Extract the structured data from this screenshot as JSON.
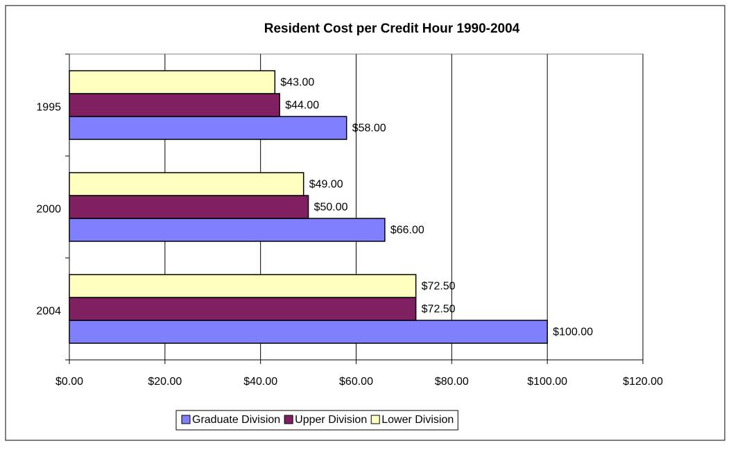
{
  "chart_data": {
    "type": "bar",
    "orientation": "horizontal",
    "title": "Resident Cost per Credit Hour 1990-2004",
    "categories": [
      "1995",
      "2000",
      "2004"
    ],
    "series": [
      {
        "name": "Graduate Division",
        "color": "#8080ff",
        "values": [
          58,
          66,
          100
        ],
        "value_labels": [
          "$58.00",
          "$66.00",
          "$100.00"
        ]
      },
      {
        "name": "Upper Division",
        "color": "#802060",
        "values": [
          44,
          50,
          72.5
        ],
        "value_labels": [
          "$44.00",
          "$50.00",
          "$72.50"
        ]
      },
      {
        "name": "Lower Division",
        "color": "#ffffc0",
        "values": [
          43,
          49,
          72.5
        ],
        "value_labels": [
          "$43.00",
          "$49.00",
          "$72.50"
        ]
      }
    ],
    "xlim": [
      0,
      120
    ],
    "xticks": [
      {
        "value": 0,
        "label": "$0.00"
      },
      {
        "value": 20,
        "label": "$20.00"
      },
      {
        "value": 40,
        "label": "$40.00"
      },
      {
        "value": 60,
        "label": "$60.00"
      },
      {
        "value": 80,
        "label": "$80.00"
      },
      {
        "value": 100,
        "label": "$100.00"
      },
      {
        "value": 120,
        "label": "$120.00"
      }
    ],
    "grid": true,
    "legend": "bottom"
  }
}
